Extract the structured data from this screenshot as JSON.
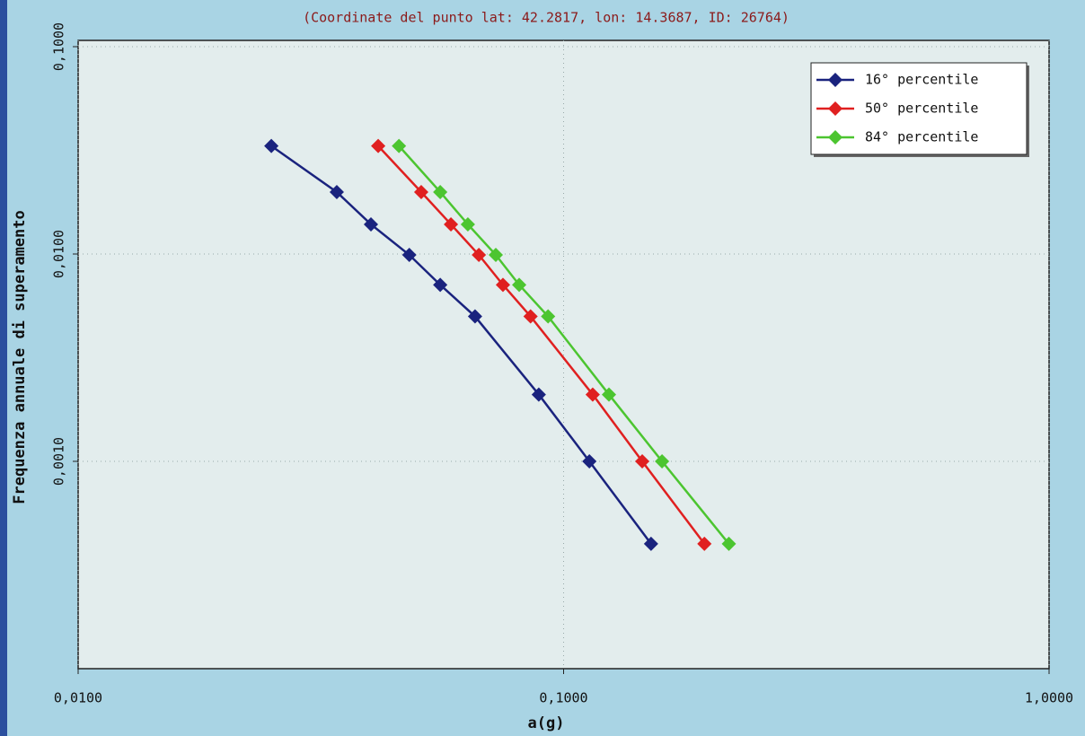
{
  "chart_data": {
    "type": "line",
    "title": "(Coordinate del punto lat: 42.2817, lon: 14.3687, ID: 26764)",
    "xlabel": "a(g)",
    "ylabel": "Frequenza annuale di superamento",
    "log_x": true,
    "log_y": true,
    "xlim": [
      0.01,
      1.0
    ],
    "ylim": [
      0.0001,
      0.1
    ],
    "xticks": [
      {
        "value": 0.01,
        "label": "0,0100"
      },
      {
        "value": 0.1,
        "label": "0,1000"
      },
      {
        "value": 1.0,
        "label": "1,0000"
      }
    ],
    "yticks": [
      {
        "value": 0.1,
        "label": "0,1000"
      },
      {
        "value": 0.01,
        "label": "0,0100"
      },
      {
        "value": 0.001,
        "label": "0,0010"
      }
    ],
    "grid": true,
    "legend": "top-right",
    "series": [
      {
        "name": "16° percentile",
        "color": "#1a237e",
        "x": [
          0.025,
          0.0341,
          0.0401,
          0.0481,
          0.0557,
          0.0657,
          0.0889,
          0.113,
          0.1514
        ],
        "values": [
          0.0332,
          0.0199,
          0.0139,
          0.0099,
          0.0071,
          0.005,
          0.0021,
          0.001,
          0.0004
        ]
      },
      {
        "name": "50° percentile",
        "color": "#e02020",
        "x": [
          0.0415,
          0.0509,
          0.0586,
          0.0669,
          0.075,
          0.0855,
          0.1148,
          0.1452,
          0.195
        ],
        "values": [
          0.0332,
          0.0199,
          0.0139,
          0.0099,
          0.0071,
          0.005,
          0.0021,
          0.001,
          0.0004
        ]
      },
      {
        "name": "84° percentile",
        "color": "#4cc530",
        "x": [
          0.0458,
          0.0557,
          0.0635,
          0.0725,
          0.081,
          0.0929,
          0.124,
          0.1595,
          0.219
        ],
        "values": [
          0.0332,
          0.0199,
          0.0139,
          0.0099,
          0.0071,
          0.005,
          0.0021,
          0.001,
          0.0004
        ]
      }
    ]
  }
}
